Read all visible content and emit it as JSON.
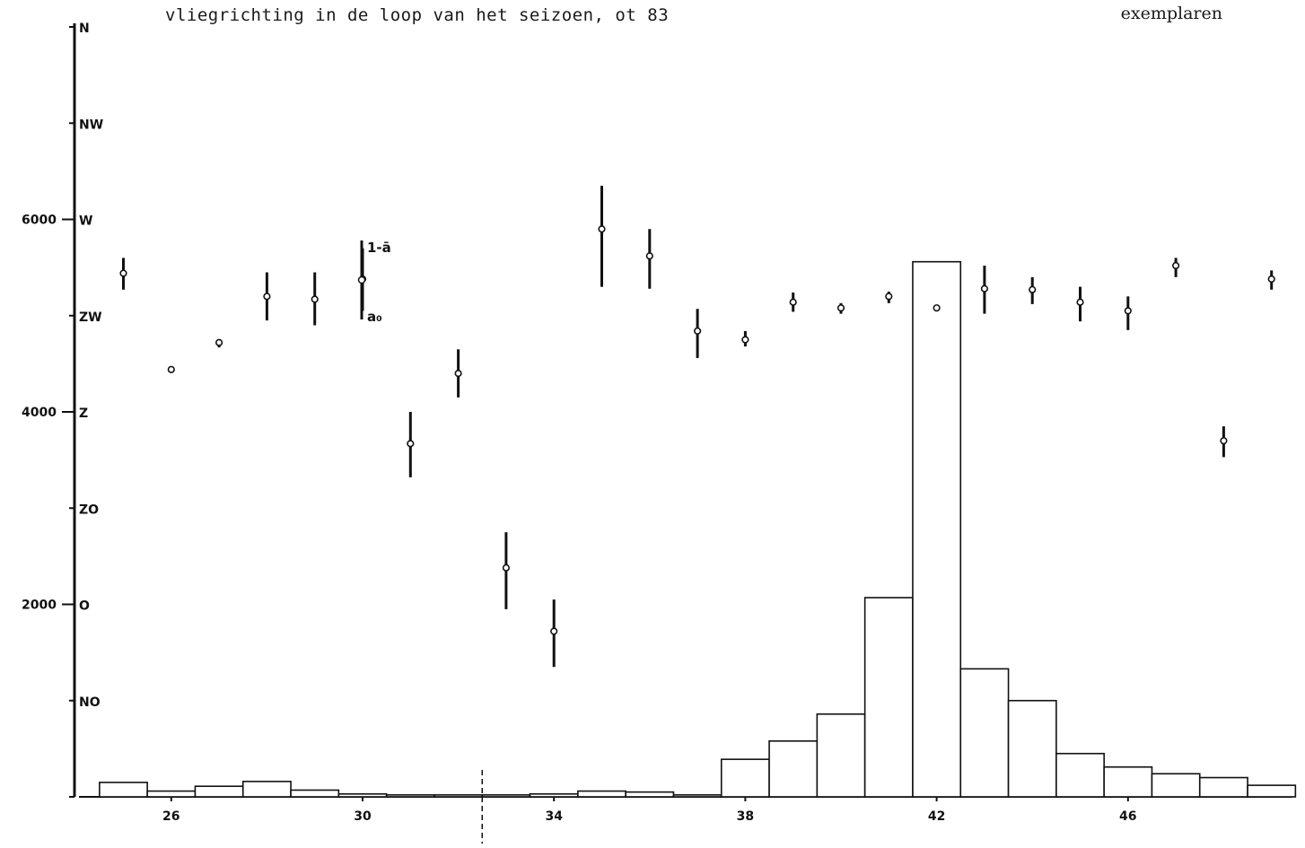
{
  "title": "vliegrichting in de loop van het seizoen, ot 83",
  "unit_label": "exemplaren",
  "legend": {
    "top": "1-ā",
    "bottom": "a₀"
  },
  "chart_data": [
    {
      "type": "bar",
      "name": "exemplaren",
      "x_ticks": [
        26,
        30,
        34,
        38,
        42,
        46
      ],
      "y_ticks": [
        2000,
        4000,
        6000
      ],
      "ylim": [
        0,
        8000
      ],
      "xlim": [
        24.3,
        49.7
      ],
      "divider_x": 32.5,
      "categories": [
        25,
        26,
        27,
        28,
        29,
        30,
        31,
        32,
        33,
        34,
        35,
        36,
        37,
        38,
        39,
        40,
        41,
        42,
        43,
        44,
        45,
        46,
        47,
        48,
        49
      ],
      "values": [
        150,
        60,
        110,
        160,
        70,
        30,
        20,
        20,
        20,
        30,
        60,
        50,
        20,
        390,
        580,
        860,
        2070,
        5560,
        1330,
        1000,
        450,
        310,
        240,
        200,
        120
      ]
    },
    {
      "type": "scatter",
      "name": "vliegrichting",
      "y_scale": [
        "N",
        "NW",
        "W",
        "ZW",
        "Z",
        "ZO",
        "O",
        "NO"
      ],
      "y_unit_note": "direction in compass points from N (0) clockwise descending",
      "points": [
        {
          "week": 25,
          "dir": 2.56,
          "low": 2.4,
          "high": 2.73
        },
        {
          "week": 26,
          "dir": 3.56,
          "low": 3.56,
          "high": 3.56
        },
        {
          "week": 27,
          "dir": 3.28,
          "low": 3.25,
          "high": 3.33
        },
        {
          "week": 28,
          "dir": 2.8,
          "low": 2.55,
          "high": 3.05
        },
        {
          "week": 29,
          "dir": 2.83,
          "low": 2.55,
          "high": 3.1
        },
        {
          "week": 30,
          "dir": 2.62,
          "low": 2.3,
          "high": 2.95
        },
        {
          "week": 31,
          "dir": 4.33,
          "low": 4.0,
          "high": 4.68
        },
        {
          "week": 32,
          "dir": 3.6,
          "low": 3.35,
          "high": 3.85
        },
        {
          "week": 33,
          "dir": 5.62,
          "low": 5.25,
          "high": 6.05
        },
        {
          "week": 34,
          "dir": 6.28,
          "low": 5.95,
          "high": 6.65
        },
        {
          "week": 35,
          "dir": 2.1,
          "low": 1.65,
          "high": 2.7
        },
        {
          "week": 36,
          "dir": 2.38,
          "low": 2.1,
          "high": 2.72
        },
        {
          "week": 37,
          "dir": 3.16,
          "low": 2.93,
          "high": 3.44
        },
        {
          "week": 38,
          "dir": 3.25,
          "low": 3.16,
          "high": 3.32
        },
        {
          "week": 39,
          "dir": 2.86,
          "low": 2.76,
          "high": 2.96
        },
        {
          "week": 40,
          "dir": 2.92,
          "low": 2.87,
          "high": 2.98
        },
        {
          "week": 41,
          "dir": 2.8,
          "low": 2.75,
          "high": 2.87
        },
        {
          "week": 42,
          "dir": 2.92,
          "low": 2.89,
          "high": 2.95
        },
        {
          "week": 43,
          "dir": 2.72,
          "low": 2.48,
          "high": 2.98
        },
        {
          "week": 44,
          "dir": 2.73,
          "low": 2.6,
          "high": 2.88
        },
        {
          "week": 45,
          "dir": 2.86,
          "low": 2.7,
          "high": 3.06
        },
        {
          "week": 46,
          "dir": 2.95,
          "low": 2.8,
          "high": 3.15
        },
        {
          "week": 47,
          "dir": 2.48,
          "low": 2.4,
          "high": 2.6
        },
        {
          "week": 48,
          "dir": 4.3,
          "low": 4.15,
          "high": 4.47
        },
        {
          "week": 49,
          "dir": 2.62,
          "low": 2.53,
          "high": 2.73
        }
      ]
    }
  ]
}
